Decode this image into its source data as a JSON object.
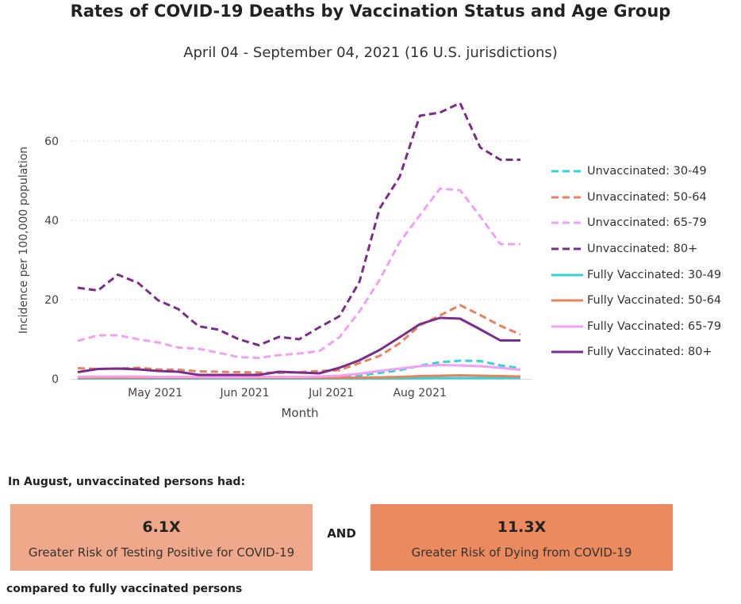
{
  "title": "Rates of COVID-19 Deaths by Vaccination Status and Age Group",
  "subtitle": "April 04 - September 04, 2021 (16 U.S. jurisdictions)",
  "chart_data": {
    "type": "line",
    "xlabel": "Month",
    "ylabel": "Incidence per 100,000 population",
    "ylim": [
      0,
      72
    ],
    "yticks": [
      0,
      20,
      40,
      60
    ],
    "xtick_labels": [
      "May 2021",
      "Jun 2021",
      "Jul 2021",
      "Aug 2021"
    ],
    "xtick_weeks": [
      3.85,
      8.3,
      12.6,
      17.0
    ],
    "x_start_label": "2021-04-04",
    "x": [
      "2021-04-04",
      "2021-04-11",
      "2021-04-18",
      "2021-04-25",
      "2021-05-02",
      "2021-05-09",
      "2021-05-16",
      "2021-05-23",
      "2021-05-30",
      "2021-06-06",
      "2021-06-13",
      "2021-06-20",
      "2021-06-27",
      "2021-07-04",
      "2021-07-11",
      "2021-07-18",
      "2021-07-25",
      "2021-08-01",
      "2021-08-08",
      "2021-08-15",
      "2021-08-22",
      "2021-08-29",
      "2021-09-05"
    ],
    "grid": true,
    "legend_position": "right",
    "series": [
      {
        "name": "Unvaccinated: 30-49",
        "color": "#2fd6d6",
        "dash": true,
        "values": [
          0.5,
          0.6,
          0.6,
          0.6,
          0.5,
          0.5,
          0.5,
          0.4,
          0.4,
          0.4,
          0.4,
          0.4,
          0.4,
          0.5,
          0.8,
          1.5,
          2.2,
          3.3,
          4.2,
          4.6,
          4.5,
          3.4,
          2.7
        ]
      },
      {
        "name": "Unvaccinated: 50-64",
        "color": "#e8825e",
        "dash": true,
        "values": [
          2.7,
          2.5,
          2.6,
          2.8,
          2.4,
          2.3,
          1.9,
          1.8,
          1.7,
          1.6,
          1.5,
          1.7,
          2.0,
          2.2,
          4.0,
          5.8,
          9.0,
          13.5,
          16.0,
          18.6,
          16.1,
          13.4,
          11.2
        ]
      },
      {
        "name": "Unvaccinated: 65-79",
        "color": "#f0a0f5",
        "dash": true,
        "values": [
          9.6,
          11.0,
          11.0,
          10.0,
          9.2,
          7.9,
          7.6,
          6.6,
          5.5,
          5.3,
          6.0,
          6.4,
          7.0,
          10.5,
          17.0,
          25.0,
          34.5,
          41.3,
          48.0,
          47.6,
          41.0,
          34.0,
          34.0
        ]
      },
      {
        "name": "Unvaccinated: 80+",
        "color": "#7b2d8b",
        "dash": true,
        "values": [
          23.0,
          22.3,
          26.3,
          24.2,
          19.8,
          17.6,
          13.3,
          12.4,
          10.0,
          8.5,
          10.6,
          10.0,
          13.0,
          15.8,
          24.5,
          43.0,
          51.0,
          66.4,
          67.2,
          69.6,
          58.4,
          55.3,
          55.3
        ]
      },
      {
        "name": "Fully Vaccinated: 30-49",
        "color": "#2fd6d6",
        "dash": false,
        "values": [
          0.1,
          0.1,
          0.1,
          0.1,
          0.1,
          0.1,
          0.1,
          0.1,
          0.1,
          0.1,
          0.1,
          0.1,
          0.1,
          0.1,
          0.1,
          0.1,
          0.1,
          0.15,
          0.2,
          0.2,
          0.2,
          0.2,
          0.2
        ]
      },
      {
        "name": "Fully Vaccinated: 50-64",
        "color": "#e8825e",
        "dash": false,
        "values": [
          0.3,
          0.3,
          0.3,
          0.3,
          0.3,
          0.3,
          0.3,
          0.3,
          0.3,
          0.3,
          0.3,
          0.3,
          0.3,
          0.3,
          0.3,
          0.4,
          0.5,
          0.7,
          0.8,
          0.9,
          0.8,
          0.7,
          0.6
        ]
      },
      {
        "name": "Fully Vaccinated: 65-79",
        "color": "#f0a0f5",
        "dash": false,
        "values": [
          0.5,
          0.6,
          0.6,
          0.6,
          0.5,
          0.5,
          0.5,
          0.4,
          0.4,
          0.5,
          0.5,
          0.5,
          0.6,
          0.8,
          1.3,
          2.0,
          2.6,
          3.2,
          3.5,
          3.4,
          3.2,
          2.8,
          2.3
        ]
      },
      {
        "name": "Fully Vaccinated: 80+",
        "color": "#7b2d8b",
        "dash": false,
        "values": [
          1.7,
          2.5,
          2.6,
          2.4,
          2.0,
          1.8,
          1.0,
          1.0,
          1.0,
          1.0,
          1.8,
          1.6,
          1.4,
          2.8,
          4.7,
          7.3,
          10.5,
          13.8,
          15.4,
          15.2,
          12.5,
          9.7,
          9.7
        ]
      }
    ]
  },
  "summary": {
    "intro": "In August, unvaccinated persons had:",
    "card1": {
      "value": "6.1X",
      "label": "Greater Risk of Testing Positive for COVID-19",
      "color": "#efa88a"
    },
    "and_text": "AND",
    "card2": {
      "value": "11.3X",
      "label": "Greater Risk of Dying from COVID-19",
      "color": "#eb8a5f"
    },
    "outro": "compared to fully vaccinated persons"
  }
}
